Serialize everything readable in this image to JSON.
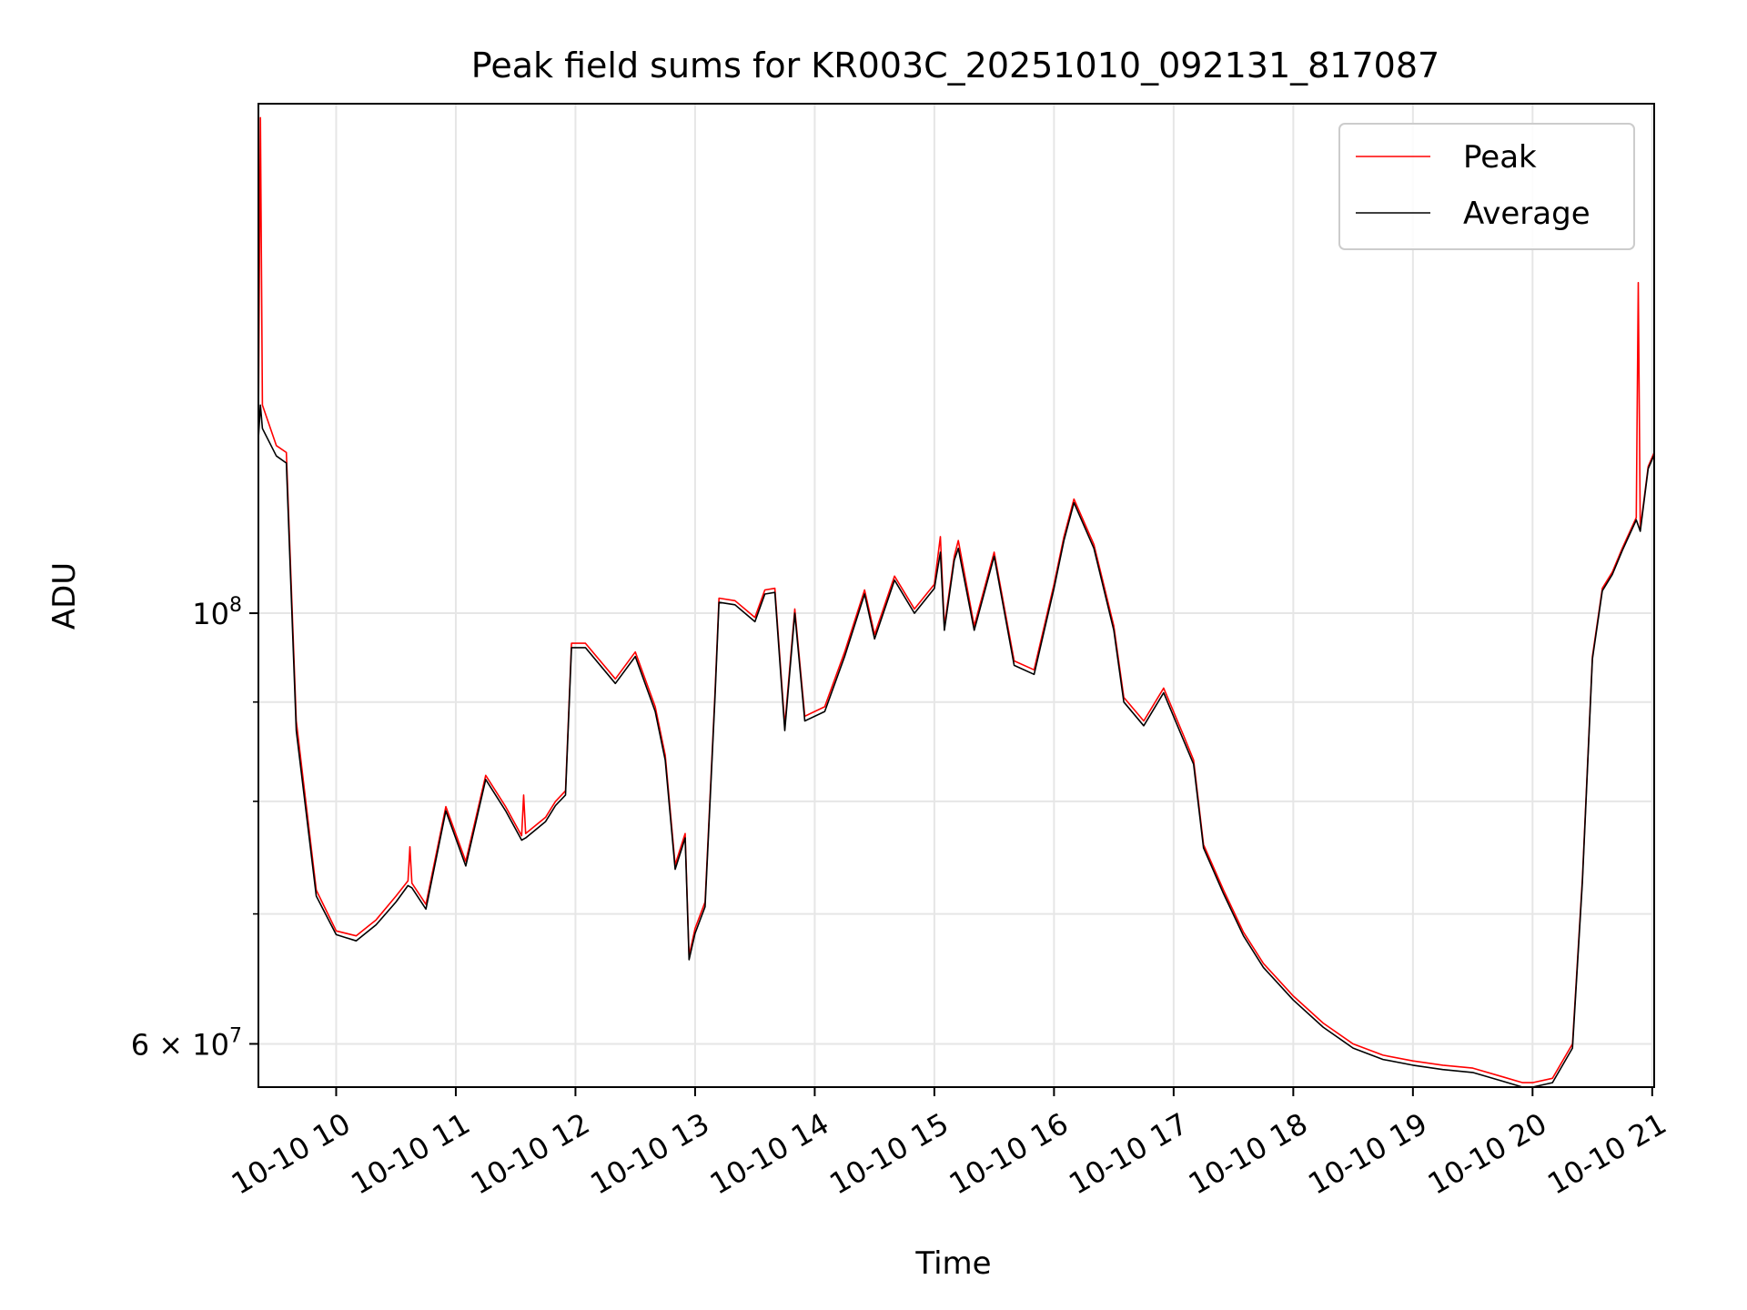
{
  "chart_data": {
    "type": "line",
    "title": "Peak field sums for KR003C_20251010_092131_817087",
    "xlabel": "Time",
    "ylabel": "ADU",
    "yscale": "log",
    "ylim": [
      57000000,
      183000000
    ],
    "xlim": [
      "10-10 09:21",
      "10-10 21:01"
    ],
    "x_tick_labels": [
      "10-10 10",
      "10-10 11",
      "10-10 12",
      "10-10 13",
      "10-10 14",
      "10-10 15",
      "10-10 16",
      "10-10 17",
      "10-10 18",
      "10-10 19",
      "10-10 20",
      "10-10 21"
    ],
    "y_tick_labels": [
      {
        "value": 100000000,
        "base": "10",
        "exp": "8",
        "mantissa": ""
      },
      {
        "value": 60000000,
        "base": "10",
        "exp": "7",
        "mantissa": "6"
      }
    ],
    "y_minor_ticks": [
      70000000,
      80000000,
      90000000
    ],
    "grid": true,
    "legend_position": "upper-right",
    "series": [
      {
        "name": "Peak",
        "color": "#ff0000",
        "points": [
          [
            "10-10 09:21",
            125000000
          ],
          [
            "10-10 09:22",
            180000000
          ],
          [
            "10-10 09:23",
            128000000
          ],
          [
            "10-10 09:30",
            122000000
          ],
          [
            "10-10 09:35",
            121000000
          ],
          [
            "10-10 09:40",
            88000000
          ],
          [
            "10-10 09:50",
            72000000
          ],
          [
            "10-10 10:00",
            68600000
          ],
          [
            "10-10 10:10",
            68200000
          ],
          [
            "10-10 10:20",
            69500000
          ],
          [
            "10-10 10:30",
            71500000
          ],
          [
            "10-10 10:36",
            72800000
          ],
          [
            "10-10 10:37",
            75800000
          ],
          [
            "10-10 10:38",
            72600000
          ],
          [
            "10-10 10:45",
            70800000
          ],
          [
            "10-10 10:55",
            79500000
          ],
          [
            "10-10 11:05",
            74500000
          ],
          [
            "10-10 11:15",
            82500000
          ],
          [
            "10-10 11:25",
            79500000
          ],
          [
            "10-10 11:33",
            76800000
          ],
          [
            "10-10 11:34",
            80600000
          ],
          [
            "10-10 11:35",
            77000000
          ],
          [
            "10-10 11:45",
            78500000
          ],
          [
            "10-10 11:50",
            80000000
          ],
          [
            "10-10 11:55",
            81000000
          ],
          [
            "10-10 11:58",
            96500000
          ],
          [
            "10-10 12:05",
            96500000
          ],
          [
            "10-10 12:20",
            92500000
          ],
          [
            "10-10 12:30",
            95500000
          ],
          [
            "10-10 12:40",
            89500000
          ],
          [
            "10-10 12:45",
            84500000
          ],
          [
            "10-10 12:50",
            74200000
          ],
          [
            "10-10 12:55",
            77000000
          ],
          [
            "10-10 12:57",
            66600000
          ],
          [
            "10-10 13:00",
            68800000
          ],
          [
            "10-10 13:05",
            71000000
          ],
          [
            "10-10 13:10",
            91000000
          ],
          [
            "10-10 13:12",
            101800000
          ],
          [
            "10-10 13:20",
            101500000
          ],
          [
            "10-10 13:30",
            99500000
          ],
          [
            "10-10 13:35",
            102800000
          ],
          [
            "10-10 13:40",
            103000000
          ],
          [
            "10-10 13:45",
            87500000
          ],
          [
            "10-10 13:50",
            100500000
          ],
          [
            "10-10 13:55",
            88500000
          ],
          [
            "10-10 14:05",
            89500000
          ],
          [
            "10-10 14:15",
            95500000
          ],
          [
            "10-10 14:25",
            102800000
          ],
          [
            "10-10 14:30",
            97500000
          ],
          [
            "10-10 14:40",
            104500000
          ],
          [
            "10-10 14:50",
            100500000
          ],
          [
            "10-10 15:00",
            103500000
          ],
          [
            "10-10 15:03",
            109500000
          ],
          [
            "10-10 15:05",
            98500000
          ],
          [
            "10-10 15:10",
            107000000
          ],
          [
            "10-10 15:12",
            109000000
          ],
          [
            "10-10 15:20",
            98500000
          ],
          [
            "10-10 15:30",
            107500000
          ],
          [
            "10-10 15:40",
            94500000
          ],
          [
            "10-10 15:50",
            93500000
          ],
          [
            "10-10 16:00",
            103500000
          ],
          [
            "10-10 16:05",
            109500000
          ],
          [
            "10-10 16:10",
            114500000
          ],
          [
            "10-10 16:20",
            108500000
          ],
          [
            "10-10 16:30",
            98500000
          ],
          [
            "10-10 16:35",
            90500000
          ],
          [
            "10-10 16:45",
            88000000
          ],
          [
            "10-10 16:55",
            91500000
          ],
          [
            "10-10 17:05",
            86500000
          ],
          [
            "10-10 17:10",
            84000000
          ],
          [
            "10-10 17:15",
            76000000
          ],
          [
            "10-10 17:25",
            72000000
          ],
          [
            "10-10 17:35",
            68500000
          ],
          [
            "10-10 17:45",
            66000000
          ],
          [
            "10-10 18:00",
            63500000
          ],
          [
            "10-10 18:15",
            61500000
          ],
          [
            "10-10 18:30",
            60000000
          ],
          [
            "10-10 18:45",
            59200000
          ],
          [
            "10-10 19:00",
            58800000
          ],
          [
            "10-10 19:15",
            58500000
          ],
          [
            "10-10 19:30",
            58300000
          ],
          [
            "10-10 19:45",
            57700000
          ],
          [
            "10-10 19:55",
            57300000
          ],
          [
            "10-10 20:00",
            57300000
          ],
          [
            "10-10 20:10",
            57600000
          ],
          [
            "10-10 20:20",
            60000000
          ],
          [
            "10-10 20:25",
            73000000
          ],
          [
            "10-10 20:30",
            95000000
          ],
          [
            "10-10 20:35",
            103000000
          ],
          [
            "10-10 20:40",
            105000000
          ],
          [
            "10-10 20:45",
            108000000
          ],
          [
            "10-10 20:52",
            112000000
          ],
          [
            "10-10 20:53",
            148000000
          ],
          [
            "10-10 20:54",
            110500000
          ],
          [
            "10-10 20:58",
            119000000
          ],
          [
            "10-10 21:01",
            121000000
          ]
        ]
      },
      {
        "name": "Average",
        "color": "#000000",
        "points": [
          [
            "10-10 09:21",
            123000000
          ],
          [
            "10-10 09:22",
            128000000
          ],
          [
            "10-10 09:23",
            124500000
          ],
          [
            "10-10 09:30",
            120500000
          ],
          [
            "10-10 09:35",
            119500000
          ],
          [
            "10-10 09:40",
            87000000
          ],
          [
            "10-10 09:50",
            71500000
          ],
          [
            "10-10 10:00",
            68300000
          ],
          [
            "10-10 10:10",
            67800000
          ],
          [
            "10-10 10:20",
            69100000
          ],
          [
            "10-10 10:30",
            71000000
          ],
          [
            "10-10 10:36",
            72400000
          ],
          [
            "10-10 10:38",
            72200000
          ],
          [
            "10-10 10:45",
            70400000
          ],
          [
            "10-10 10:55",
            79100000
          ],
          [
            "10-10 11:05",
            74100000
          ],
          [
            "10-10 11:15",
            82100000
          ],
          [
            "10-10 11:25",
            79100000
          ],
          [
            "10-10 11:33",
            76400000
          ],
          [
            "10-10 11:35",
            76600000
          ],
          [
            "10-10 11:45",
            78100000
          ],
          [
            "10-10 11:50",
            79600000
          ],
          [
            "10-10 11:55",
            80600000
          ],
          [
            "10-10 11:58",
            96000000
          ],
          [
            "10-10 12:05",
            96000000
          ],
          [
            "10-10 12:20",
            92000000
          ],
          [
            "10-10 12:30",
            95000000
          ],
          [
            "10-10 12:40",
            89000000
          ],
          [
            "10-10 12:45",
            84000000
          ],
          [
            "10-10 12:50",
            73800000
          ],
          [
            "10-10 12:55",
            76600000
          ],
          [
            "10-10 12:57",
            66300000
          ],
          [
            "10-10 13:00",
            68400000
          ],
          [
            "10-10 13:05",
            70600000
          ],
          [
            "10-10 13:10",
            90500000
          ],
          [
            "10-10 13:12",
            101300000
          ],
          [
            "10-10 13:20",
            101000000
          ],
          [
            "10-10 13:30",
            99000000
          ],
          [
            "10-10 13:35",
            102300000
          ],
          [
            "10-10 13:40",
            102500000
          ],
          [
            "10-10 13:45",
            87000000
          ],
          [
            "10-10 13:50",
            100000000
          ],
          [
            "10-10 13:55",
            88000000
          ],
          [
            "10-10 14:05",
            89000000
          ],
          [
            "10-10 14:15",
            95000000
          ],
          [
            "10-10 14:25",
            102300000
          ],
          [
            "10-10 14:30",
            97000000
          ],
          [
            "10-10 14:40",
            104000000
          ],
          [
            "10-10 14:50",
            100000000
          ],
          [
            "10-10 15:00",
            103000000
          ],
          [
            "10-10 15:03",
            107500000
          ],
          [
            "10-10 15:05",
            98000000
          ],
          [
            "10-10 15:10",
            106500000
          ],
          [
            "10-10 15:12",
            108000000
          ],
          [
            "10-10 15:20",
            98000000
          ],
          [
            "10-10 15:30",
            107000000
          ],
          [
            "10-10 15:40",
            94000000
          ],
          [
            "10-10 15:50",
            93000000
          ],
          [
            "10-10 16:00",
            103000000
          ],
          [
            "10-10 16:05",
            109000000
          ],
          [
            "10-10 16:10",
            114000000
          ],
          [
            "10-10 16:20",
            108000000
          ],
          [
            "10-10 16:30",
            98000000
          ],
          [
            "10-10 16:35",
            90000000
          ],
          [
            "10-10 16:45",
            87500000
          ],
          [
            "10-10 16:55",
            91000000
          ],
          [
            "10-10 17:05",
            86000000
          ],
          [
            "10-10 17:10",
            83600000
          ],
          [
            "10-10 17:15",
            75700000
          ],
          [
            "10-10 17:25",
            71700000
          ],
          [
            "10-10 17:35",
            68200000
          ],
          [
            "10-10 17:45",
            65700000
          ],
          [
            "10-10 18:00",
            63200000
          ],
          [
            "10-10 18:15",
            61200000
          ],
          [
            "10-10 18:30",
            59700000
          ],
          [
            "10-10 18:45",
            58900000
          ],
          [
            "10-10 19:00",
            58500000
          ],
          [
            "10-10 19:15",
            58200000
          ],
          [
            "10-10 19:30",
            58000000
          ],
          [
            "10-10 19:45",
            57400000
          ],
          [
            "10-10 19:55",
            57000000
          ],
          [
            "10-10 20:00",
            57000000
          ],
          [
            "10-10 20:10",
            57300000
          ],
          [
            "10-10 20:20",
            59700000
          ],
          [
            "10-10 20:25",
            72700000
          ],
          [
            "10-10 20:30",
            94700000
          ],
          [
            "10-10 20:35",
            102700000
          ],
          [
            "10-10 20:40",
            104700000
          ],
          [
            "10-10 20:45",
            107700000
          ],
          [
            "10-10 20:52",
            111700000
          ],
          [
            "10-10 20:54",
            110200000
          ],
          [
            "10-10 20:58",
            118700000
          ],
          [
            "10-10 21:01",
            120700000
          ]
        ]
      }
    ]
  }
}
